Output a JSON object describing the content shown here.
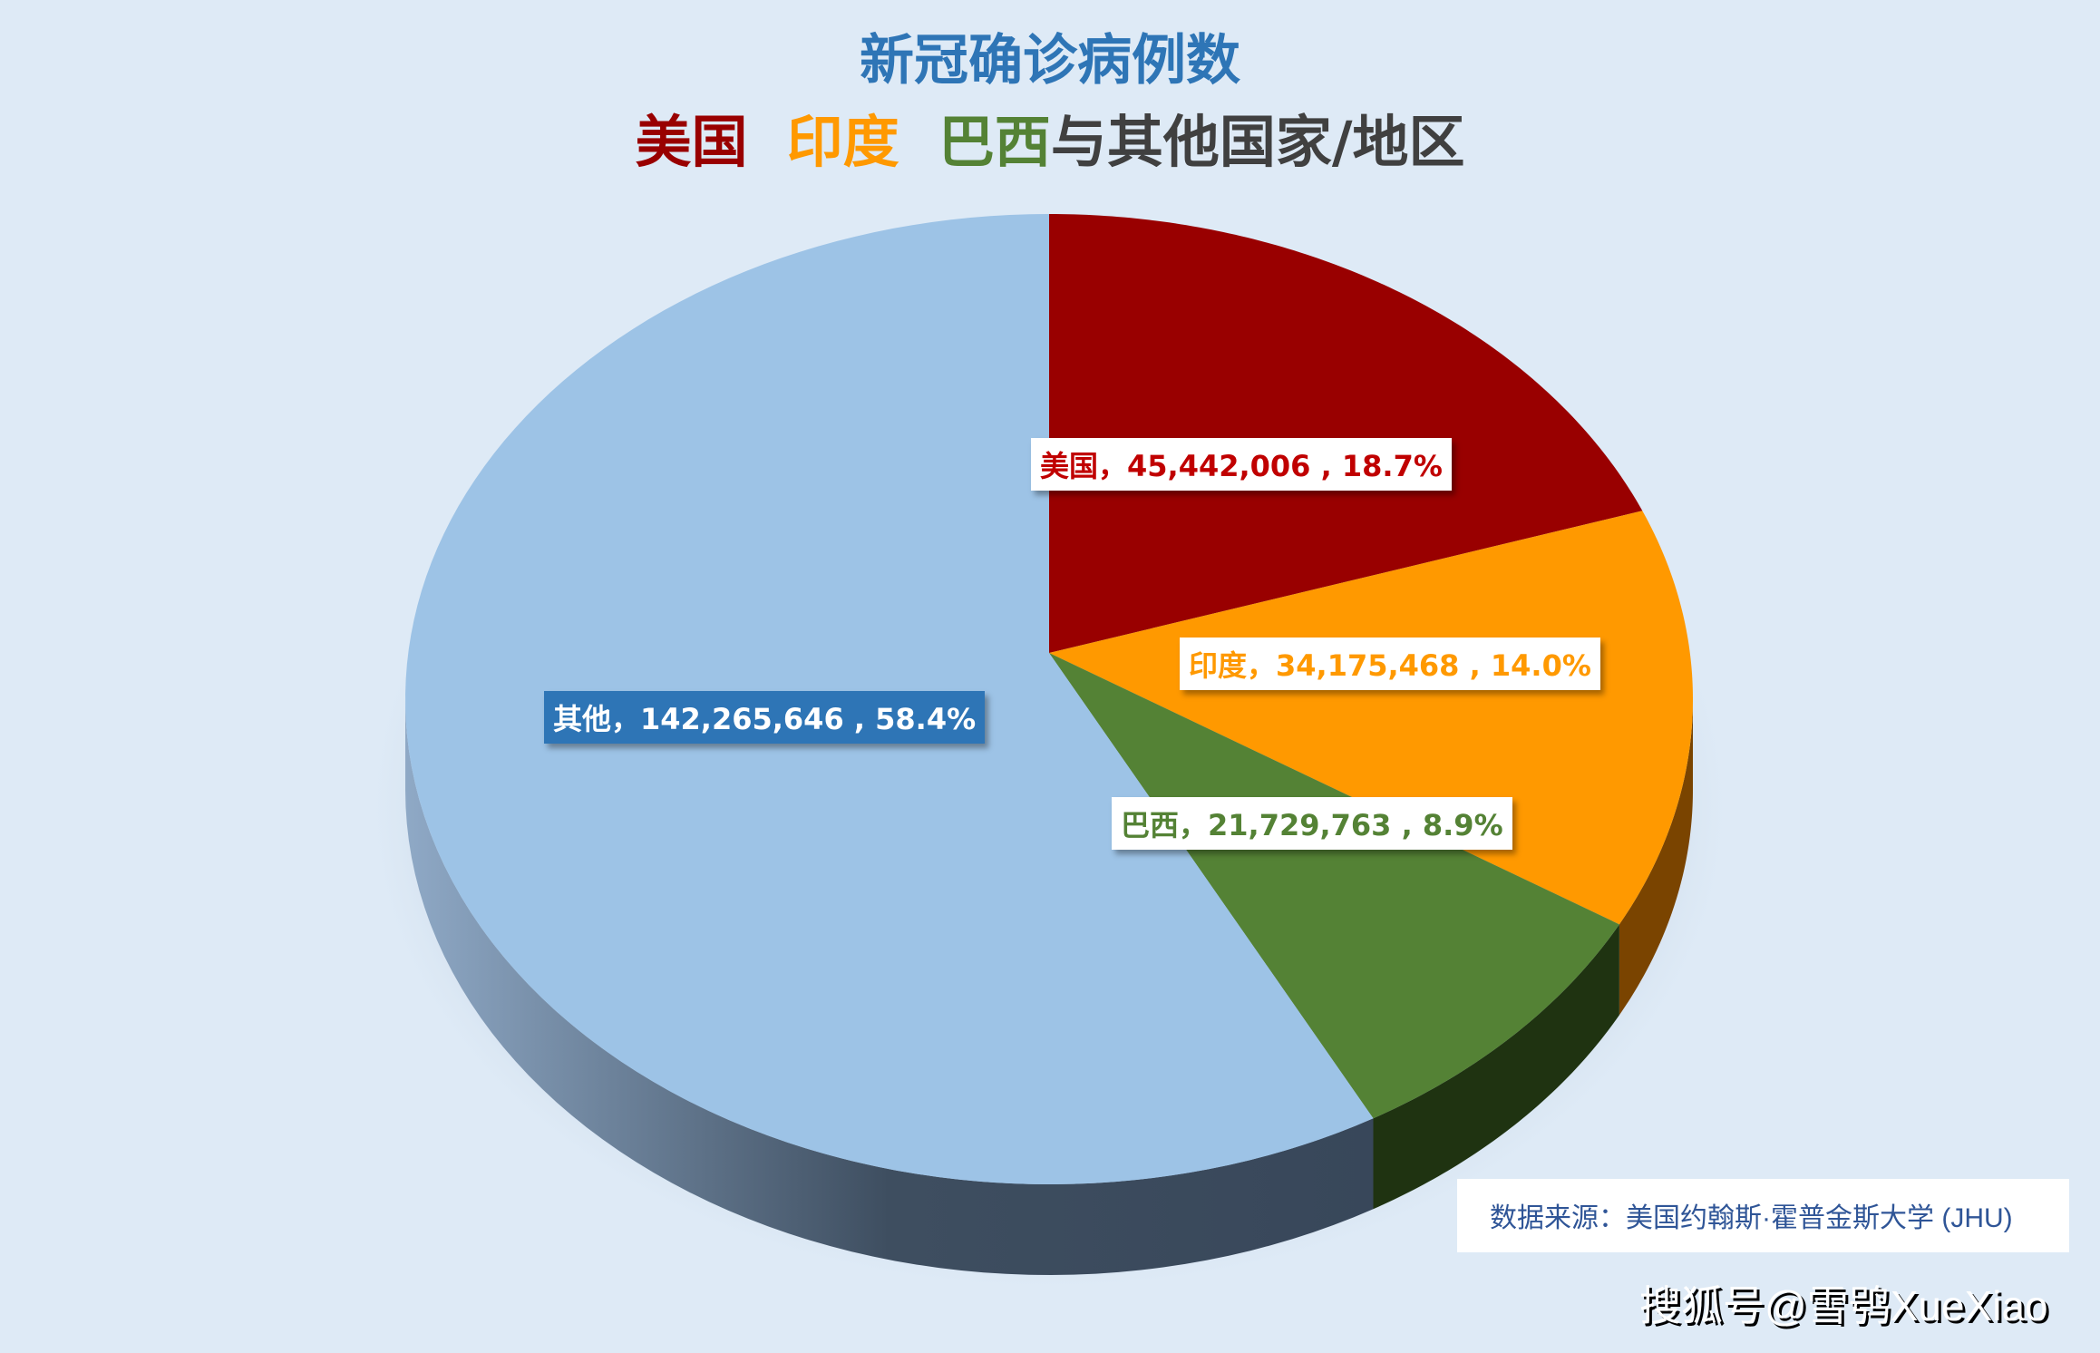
{
  "chart_data": {
    "type": "pie",
    "style": "3d",
    "title": "新冠确诊病例数",
    "subtitle": {
      "parts": [
        {
          "text": "美国",
          "color": "#990000"
        },
        {
          "text": "印度",
          "color": "#ff9900"
        },
        {
          "text": "巴西",
          "color": "#548235"
        },
        {
          "text": "与其他国家/地区",
          "color": "#404040"
        }
      ]
    },
    "slices": [
      {
        "name": "美国",
        "value": 45442006,
        "percent": 18.7,
        "label": "美国，45,442,006 , 18.7%",
        "color": "#990000",
        "side_color": "#5c0000",
        "label_color": "#c00000",
        "label_bg": "#ffffff"
      },
      {
        "name": "印度",
        "value": 34175468,
        "percent": 14.0,
        "label": "印度，34,175,468 , 14.0%",
        "color": "#ff9900",
        "side_color": "#7a4400",
        "label_color": "#ff9900",
        "label_bg": "#ffffff"
      },
      {
        "name": "巴西",
        "value": 21729763,
        "percent": 8.9,
        "label": "巴西，21,729,763 , 8.9%",
        "color": "#548235",
        "side_color": "#1f3311",
        "label_color": "#548235",
        "label_bg": "#ffffff"
      },
      {
        "name": "其他",
        "value": 142265646,
        "percent": 58.4,
        "label": "其他，142,265,646 , 58.4%",
        "color": "#9dc3e6",
        "side_color": "#4a5d72",
        "label_color": "#ffffff",
        "label_bg": "#2e75b6"
      }
    ],
    "legend": "none"
  },
  "source": "数据来源：美国约翰斯·霍普金斯大学 (JHU)",
  "watermark": "搜狐号@雪鸮XueXiao",
  "background": "#deeaf6"
}
